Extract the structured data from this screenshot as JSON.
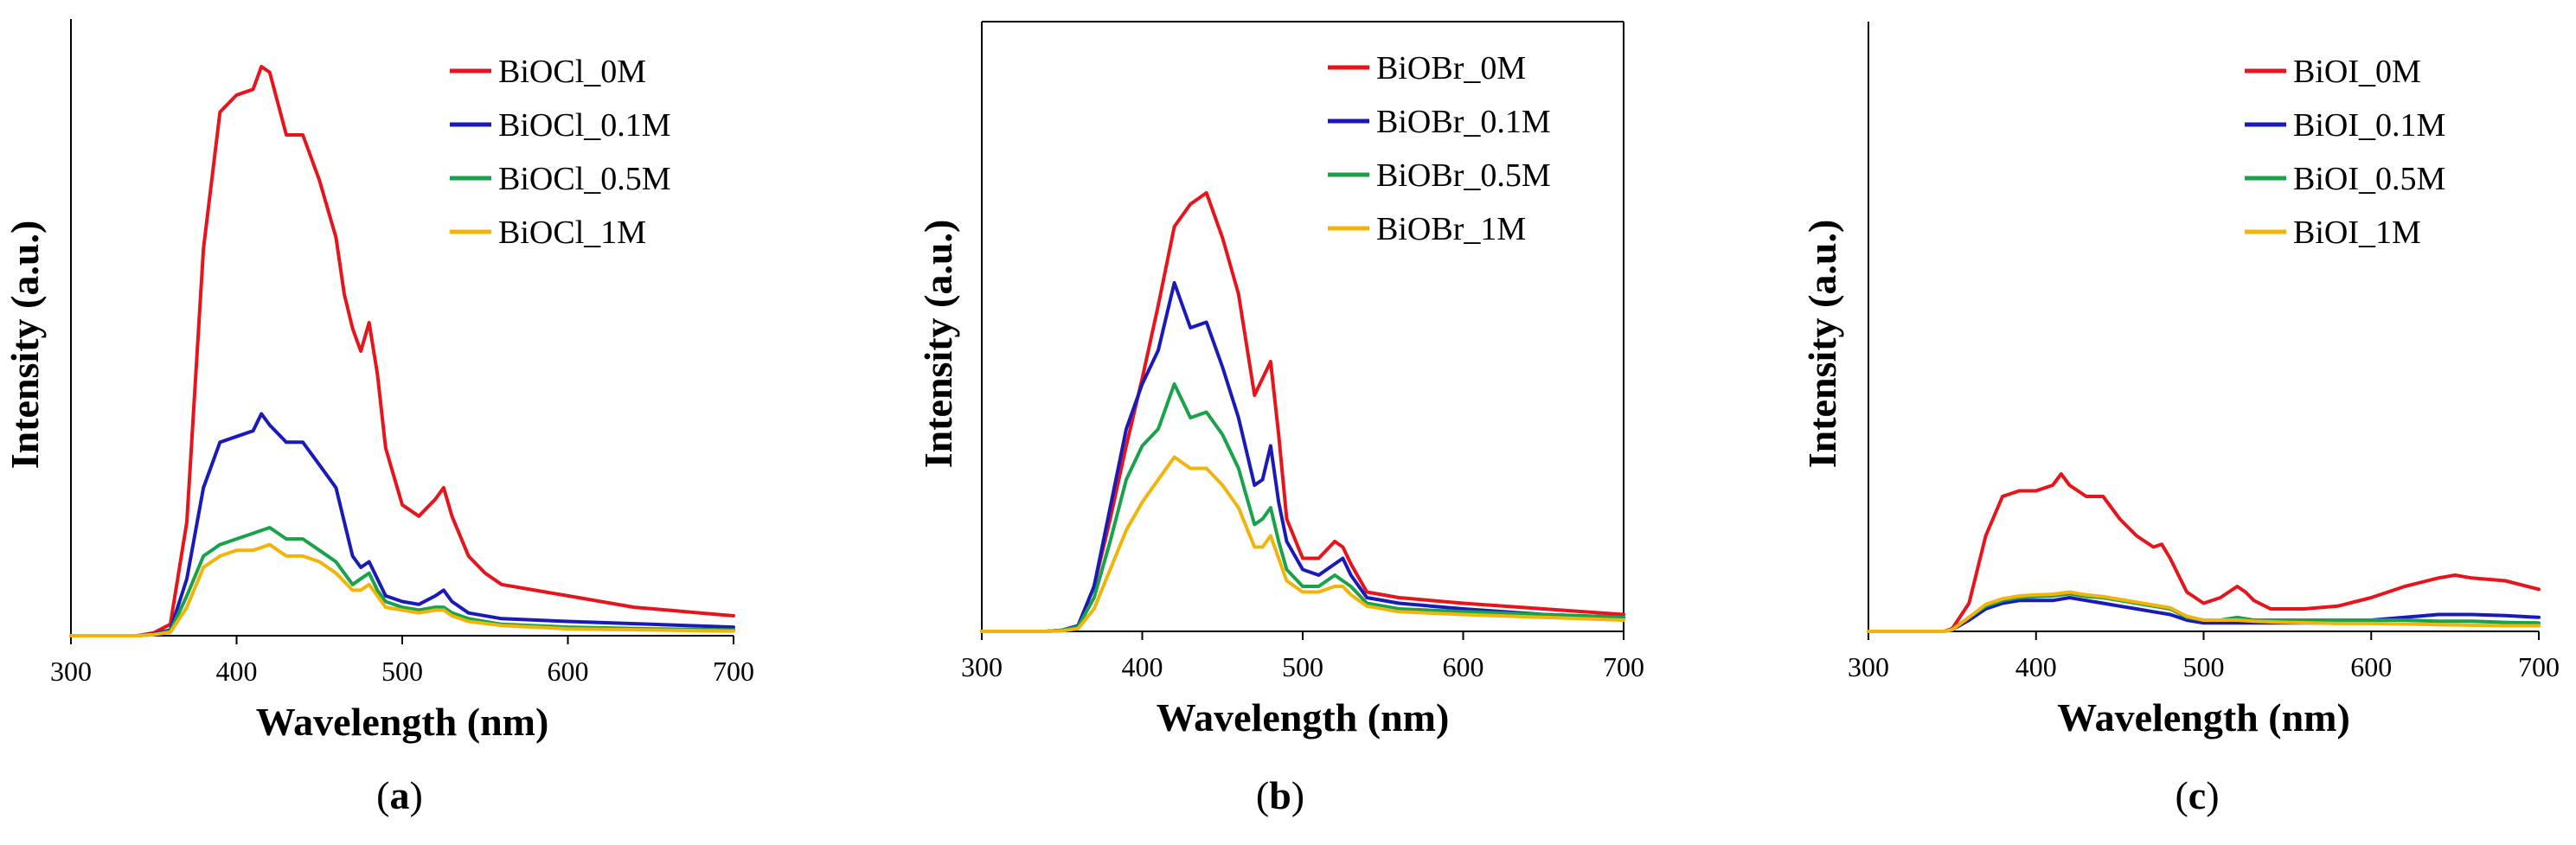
{
  "chart_data": [
    {
      "type": "line",
      "panel_label": "a",
      "xlabel": "Wavelength (nm)",
      "ylabel": "Intensity (a.u.)",
      "xlim": [
        300,
        700
      ],
      "ylim": [
        0,
        1
      ],
      "xticks": [
        300,
        400,
        500,
        600,
        700
      ],
      "y_ticks_labeled": false,
      "legend_position": "top-right",
      "series": [
        {
          "name": "BiOCl_0M",
          "color": "#e8141b",
          "x": [
            300,
            340,
            350,
            360,
            370,
            380,
            390,
            400,
            410,
            415,
            420,
            430,
            440,
            450,
            460,
            465,
            470,
            475,
            480,
            485,
            490,
            500,
            510,
            520,
            525,
            530,
            540,
            550,
            560,
            580,
            600,
            620,
            640,
            660,
            680,
            700
          ],
          "y": [
            0,
            0,
            0.005,
            0.02,
            0.2,
            0.68,
            0.92,
            0.95,
            0.96,
            1.0,
            0.99,
            0.88,
            0.88,
            0.8,
            0.7,
            0.6,
            0.54,
            0.5,
            0.55,
            0.46,
            0.33,
            0.23,
            0.21,
            0.24,
            0.26,
            0.21,
            0.14,
            0.11,
            0.09,
            0.08,
            0.07,
            0.06,
            0.05,
            0.045,
            0.04,
            0.035
          ]
        },
        {
          "name": "BiOCl_0.1M",
          "color": "#1a1ab8",
          "x": [
            300,
            340,
            350,
            360,
            370,
            380,
            390,
            400,
            410,
            415,
            420,
            430,
            440,
            450,
            460,
            470,
            475,
            480,
            485,
            490,
            500,
            510,
            520,
            525,
            530,
            540,
            560,
            600,
            650,
            700
          ],
          "y": [
            0,
            0,
            0.003,
            0.01,
            0.1,
            0.26,
            0.34,
            0.35,
            0.36,
            0.39,
            0.37,
            0.34,
            0.34,
            0.3,
            0.26,
            0.14,
            0.12,
            0.13,
            0.1,
            0.07,
            0.06,
            0.055,
            0.07,
            0.08,
            0.06,
            0.04,
            0.03,
            0.025,
            0.02,
            0.015
          ]
        },
        {
          "name": "BiOCl_0.5M",
          "color": "#18a24a",
          "x": [
            300,
            340,
            350,
            360,
            370,
            380,
            390,
            400,
            410,
            420,
            430,
            440,
            450,
            460,
            470,
            475,
            480,
            485,
            490,
            500,
            510,
            520,
            525,
            530,
            540,
            560,
            600,
            650,
            700
          ],
          "y": [
            0,
            0,
            0.002,
            0.008,
            0.07,
            0.14,
            0.16,
            0.17,
            0.18,
            0.19,
            0.17,
            0.17,
            0.15,
            0.13,
            0.09,
            0.1,
            0.11,
            0.08,
            0.06,
            0.05,
            0.045,
            0.05,
            0.05,
            0.04,
            0.03,
            0.02,
            0.015,
            0.012,
            0.01
          ]
        },
        {
          "name": "BiOCl_1M",
          "color": "#f2b40a",
          "x": [
            300,
            340,
            350,
            360,
            370,
            380,
            390,
            400,
            410,
            420,
            430,
            440,
            450,
            460,
            470,
            475,
            480,
            485,
            490,
            500,
            510,
            520,
            525,
            530,
            540,
            560,
            600,
            650,
            700
          ],
          "y": [
            0,
            0,
            0.002,
            0.006,
            0.05,
            0.12,
            0.14,
            0.15,
            0.15,
            0.16,
            0.14,
            0.14,
            0.13,
            0.11,
            0.08,
            0.08,
            0.09,
            0.07,
            0.05,
            0.045,
            0.04,
            0.045,
            0.045,
            0.035,
            0.025,
            0.018,
            0.012,
            0.01,
            0.008
          ]
        }
      ]
    },
    {
      "type": "line",
      "panel_label": "b",
      "xlabel": "Wavelength (nm)",
      "ylabel": "Intensity (a.u.)",
      "xlim": [
        300,
        700
      ],
      "ylim": [
        0,
        1
      ],
      "xticks": [
        300,
        400,
        500,
        600,
        700
      ],
      "y_ticks_labeled": false,
      "legend_position": "top-right",
      "series": [
        {
          "name": "BiOBr_0M",
          "color": "#e8141b",
          "x": [
            300,
            340,
            350,
            360,
            370,
            380,
            390,
            400,
            410,
            420,
            430,
            440,
            450,
            460,
            470,
            475,
            480,
            485,
            490,
            500,
            510,
            520,
            525,
            530,
            540,
            560,
            600,
            650,
            700
          ],
          "y": [
            0,
            0,
            0.002,
            0.01,
            0.08,
            0.2,
            0.33,
            0.45,
            0.58,
            0.72,
            0.76,
            0.78,
            0.7,
            0.6,
            0.42,
            0.45,
            0.48,
            0.35,
            0.2,
            0.13,
            0.13,
            0.16,
            0.15,
            0.12,
            0.07,
            0.06,
            0.05,
            0.04,
            0.03
          ]
        },
        {
          "name": "BiOBr_0.1M",
          "color": "#1a1ab8",
          "x": [
            300,
            340,
            350,
            360,
            370,
            380,
            390,
            400,
            410,
            415,
            420,
            430,
            440,
            450,
            460,
            470,
            475,
            480,
            485,
            490,
            500,
            510,
            520,
            525,
            530,
            540,
            560,
            600,
            650,
            700
          ],
          "y": [
            0,
            0,
            0.002,
            0.01,
            0.08,
            0.22,
            0.36,
            0.44,
            0.5,
            0.56,
            0.62,
            0.54,
            0.55,
            0.47,
            0.38,
            0.26,
            0.27,
            0.33,
            0.23,
            0.16,
            0.11,
            0.1,
            0.12,
            0.13,
            0.1,
            0.06,
            0.05,
            0.04,
            0.03,
            0.025
          ]
        },
        {
          "name": "BiOBr_0.5M",
          "color": "#18a24a",
          "x": [
            300,
            340,
            350,
            360,
            370,
            380,
            390,
            400,
            410,
            420,
            430,
            440,
            450,
            460,
            470,
            475,
            480,
            485,
            490,
            500,
            510,
            520,
            525,
            530,
            540,
            560,
            600,
            650,
            700
          ],
          "y": [
            0,
            0,
            0.002,
            0.008,
            0.06,
            0.16,
            0.27,
            0.33,
            0.36,
            0.44,
            0.38,
            0.39,
            0.35,
            0.29,
            0.19,
            0.2,
            0.22,
            0.16,
            0.11,
            0.08,
            0.08,
            0.1,
            0.09,
            0.08,
            0.05,
            0.04,
            0.035,
            0.03,
            0.025
          ]
        },
        {
          "name": "BiOBr_1M",
          "color": "#f2b40a",
          "x": [
            300,
            340,
            350,
            360,
            370,
            380,
            390,
            400,
            410,
            420,
            430,
            440,
            450,
            460,
            470,
            475,
            480,
            485,
            490,
            500,
            510,
            520,
            525,
            530,
            540,
            560,
            600,
            650,
            700
          ],
          "y": [
            0,
            0,
            0.001,
            0.005,
            0.04,
            0.11,
            0.18,
            0.23,
            0.27,
            0.31,
            0.29,
            0.29,
            0.26,
            0.22,
            0.15,
            0.15,
            0.17,
            0.13,
            0.09,
            0.07,
            0.07,
            0.08,
            0.08,
            0.065,
            0.045,
            0.035,
            0.03,
            0.025,
            0.02
          ]
        }
      ]
    },
    {
      "type": "line",
      "panel_label": "c",
      "xlabel": "Wavelength (nm)",
      "ylabel": "Intensity (a.u.)",
      "xlim": [
        300,
        700
      ],
      "ylim": [
        0,
        1
      ],
      "xticks": [
        300,
        400,
        500,
        600,
        700
      ],
      "y_ticks_labeled": false,
      "legend_position": "top-right",
      "series": [
        {
          "name": "BiOI_0M",
          "color": "#e8141b",
          "x": [
            300,
            345,
            350,
            360,
            370,
            380,
            390,
            400,
            410,
            415,
            420,
            430,
            440,
            450,
            460,
            470,
            475,
            480,
            490,
            500,
            510,
            520,
            525,
            530,
            540,
            560,
            580,
            600,
            620,
            640,
            650,
            660,
            680,
            700
          ],
          "y": [
            0,
            0,
            0.005,
            0.05,
            0.17,
            0.24,
            0.25,
            0.25,
            0.26,
            0.28,
            0.26,
            0.24,
            0.24,
            0.2,
            0.17,
            0.15,
            0.155,
            0.13,
            0.07,
            0.05,
            0.06,
            0.08,
            0.07,
            0.055,
            0.04,
            0.04,
            0.045,
            0.06,
            0.08,
            0.095,
            0.1,
            0.095,
            0.09,
            0.075
          ]
        },
        {
          "name": "BiOI_0.1M",
          "color": "#1a1ab8",
          "x": [
            300,
            345,
            350,
            360,
            370,
            380,
            390,
            400,
            410,
            420,
            430,
            440,
            450,
            460,
            470,
            480,
            490,
            500,
            510,
            520,
            530,
            550,
            580,
            600,
            620,
            640,
            660,
            680,
            700
          ],
          "y": [
            0,
            0,
            0.003,
            0.02,
            0.04,
            0.05,
            0.055,
            0.055,
            0.055,
            0.06,
            0.055,
            0.05,
            0.045,
            0.04,
            0.035,
            0.03,
            0.02,
            0.015,
            0.015,
            0.015,
            0.015,
            0.015,
            0.015,
            0.02,
            0.025,
            0.03,
            0.03,
            0.028,
            0.025
          ]
        },
        {
          "name": "BiOI_0.5M",
          "color": "#18a24a",
          "x": [
            300,
            345,
            350,
            360,
            370,
            380,
            390,
            400,
            410,
            420,
            430,
            440,
            450,
            460,
            470,
            480,
            490,
            500,
            510,
            520,
            530,
            550,
            580,
            600,
            620,
            640,
            660,
            680,
            700
          ],
          "y": [
            0,
            0,
            0.003,
            0.025,
            0.045,
            0.055,
            0.06,
            0.062,
            0.063,
            0.067,
            0.062,
            0.06,
            0.055,
            0.05,
            0.045,
            0.04,
            0.025,
            0.02,
            0.02,
            0.025,
            0.02,
            0.02,
            0.02,
            0.02,
            0.02,
            0.018,
            0.018,
            0.016,
            0.015
          ]
        },
        {
          "name": "BiOI_1M",
          "color": "#f2b40a",
          "x": [
            300,
            345,
            350,
            360,
            370,
            380,
            390,
            400,
            410,
            420,
            430,
            440,
            450,
            460,
            470,
            480,
            490,
            500,
            510,
            520,
            530,
            550,
            580,
            600,
            620,
            640,
            660,
            680,
            700
          ],
          "y": [
            0,
            0,
            0.003,
            0.025,
            0.048,
            0.058,
            0.063,
            0.065,
            0.066,
            0.07,
            0.065,
            0.062,
            0.057,
            0.052,
            0.047,
            0.042,
            0.027,
            0.02,
            0.02,
            0.02,
            0.018,
            0.016,
            0.014,
            0.014,
            0.013,
            0.012,
            0.011,
            0.01,
            0.01
          ]
        }
      ]
    }
  ]
}
